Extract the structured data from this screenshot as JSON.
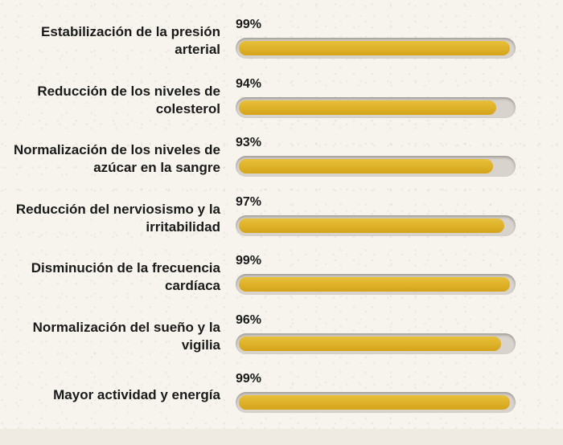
{
  "chart_data": {
    "type": "bar",
    "orientation": "horizontal",
    "categories": [
      "Estabilización de la presión arterial",
      "Reducción de los niveles de colesterol",
      "Normalización de los niveles de azúcar en la sangre",
      "Reducción del nerviosismo y la irritabilidad",
      "Disminución de la frecuencia cardíaca",
      "Normalización del sueño y la vigilia",
      "Mayor actividad y energía"
    ],
    "values": [
      99,
      94,
      93,
      97,
      99,
      96,
      99
    ],
    "value_labels": [
      "99%",
      "94%",
      "93%",
      "97%",
      "99%",
      "96%",
      "99%"
    ],
    "xlim": [
      0,
      100
    ],
    "unit": "%",
    "grid": false
  },
  "colors": {
    "bar_fill": "#dcb22a",
    "track": "#d9d3cd",
    "text": "#1a1a1a",
    "background": "#f7f4ee"
  }
}
